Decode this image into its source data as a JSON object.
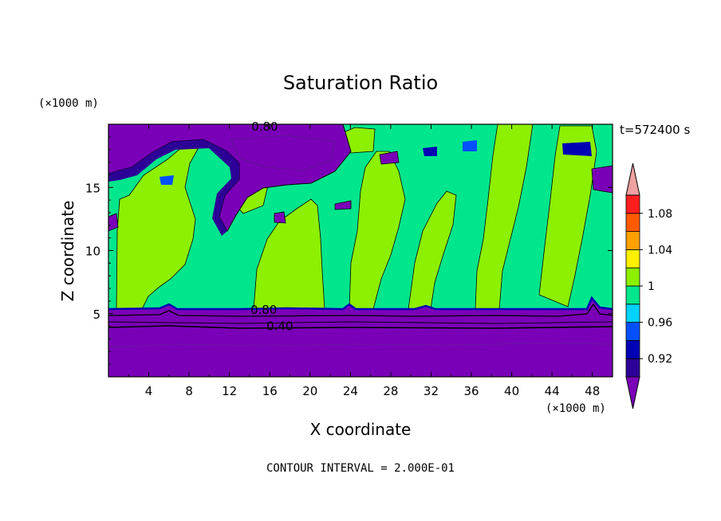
{
  "chart_data": {
    "type": "heatmap",
    "title": "Saturation Ratio",
    "xlabel": "X coordinate",
    "ylabel": "Z coordinate",
    "x_unit_label": "(×1000 m)",
    "y_unit_label": "(×1000 m)",
    "time_label": "t=572400 s",
    "footer": "CONTOUR INTERVAL = 2.000E-01",
    "xlim": [
      0,
      50
    ],
    "ylim": [
      0,
      20
    ],
    "x_ticks": [
      4,
      8,
      12,
      16,
      20,
      24,
      28,
      32,
      36,
      40,
      44,
      48
    ],
    "y_ticks": [
      5,
      10,
      15
    ],
    "colorbar": {
      "levels": [
        0.9,
        0.92,
        0.94,
        0.96,
        0.98,
        1.0,
        1.02,
        1.04,
        1.06,
        1.08,
        1.1
      ],
      "labeled_ticks": [
        "0.92",
        "0.96",
        "1",
        "1.04",
        "1.08"
      ],
      "colors": [
        "#7a00b8",
        "#2c0096",
        "#0000b4",
        "#0050ff",
        "#00d2ff",
        "#00e68c",
        "#8cf000",
        "#fff000",
        "#ffa000",
        "#ff5a00",
        "#ff1e1e",
        "#f0a0a0"
      ]
    },
    "contour_labels": [
      {
        "text": "0.80",
        "x": 15.5,
        "z": 19.5
      },
      {
        "text": "0.80",
        "x": 15.4,
        "z": 5.0
      },
      {
        "text": "0.40",
        "x": 17.0,
        "z": 3.7
      }
    ],
    "regions": {
      "boundary_layer_top_z": 5.3,
      "dry_upper_region": {
        "x_range": [
          0,
          24
        ],
        "z_range": [
          16.3,
          20
        ],
        "value": "< 0.90"
      },
      "supersaturated_columns": [
        {
          "x_range": [
            1,
            8
          ],
          "z_range": [
            5.4,
            18.5
          ],
          "value": "1.00-1.02"
        },
        {
          "x_range": [
            15,
            21
          ],
          "z_range": [
            5.4,
            13
          ],
          "value": "1.00-1.02"
        },
        {
          "x_range": [
            23,
            29
          ],
          "z_range": [
            5.4,
            19
          ],
          "value": "1.00-1.02"
        },
        {
          "x_range": [
            31,
            35
          ],
          "z_range": [
            5.4,
            15
          ],
          "value": "1.00-1.02"
        },
        {
          "x_range": [
            36,
            42
          ],
          "z_range": [
            5.4,
            20
          ],
          "value": "1.00-1.02"
        },
        {
          "x_range": [
            42,
            48
          ],
          "z_range": [
            5.4,
            19
          ],
          "value": "1.00-1.02"
        }
      ],
      "background_value": "0.98-1.00"
    }
  }
}
